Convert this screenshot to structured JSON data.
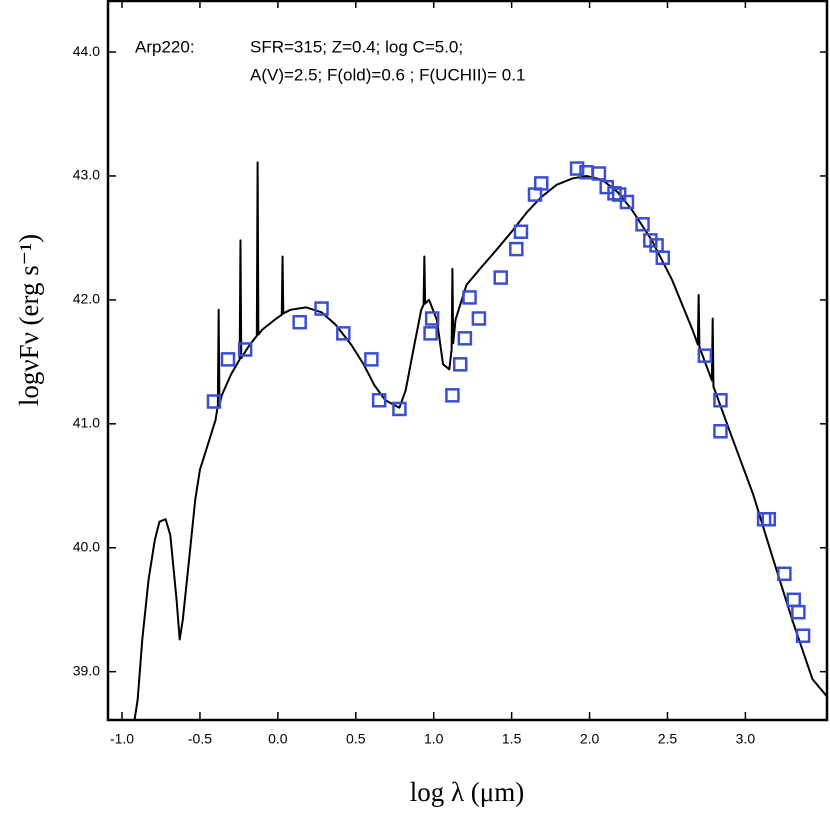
{
  "chart_data": {
    "type": "scatter",
    "annotation": [
      "Arp220:",
      "SFR=315; Z=0.4; log C=5.0;",
      "A(V)=2.5; F(old)=0.6 ; F(UCHII)= 0.1"
    ],
    "xlabel": "log λ  (μm)",
    "ylabel": "logνFν  (erg s⁻¹)",
    "xlim": [
      -1.09,
      3.53
    ],
    "ylim": [
      38.61,
      44.42
    ],
    "xticks": [
      {
        "value": -1.0,
        "label": "-1.0"
      },
      {
        "value": -0.5,
        "label": "-0.5"
      },
      {
        "value": 0.0,
        "label": "0.0"
      },
      {
        "value": 0.5,
        "label": "0.5"
      },
      {
        "value": 1.0,
        "label": "1.0"
      },
      {
        "value": 1.5,
        "label": "1.5"
      },
      {
        "value": 2.0,
        "label": "2.0"
      },
      {
        "value": 2.5,
        "label": "2.5"
      },
      {
        "value": 3.0,
        "label": "3.0"
      }
    ],
    "yticks": [
      {
        "value": 39.0,
        "label": "39.0"
      },
      {
        "value": 40.0,
        "label": "40.0"
      },
      {
        "value": 41.0,
        "label": "41.0"
      },
      {
        "value": 42.0,
        "label": "42.0"
      },
      {
        "value": 43.0,
        "label": "43.0"
      },
      {
        "value": 44.0,
        "label": "44.0"
      }
    ],
    "series": [
      {
        "type": "line",
        "color": "#000000",
        "x": [
          -0.92,
          -0.9,
          -0.87,
          -0.83,
          -0.79,
          -0.76,
          -0.72,
          -0.69,
          -0.65,
          -0.63,
          -0.61,
          -0.57,
          -0.53,
          -0.5,
          -0.45,
          -0.4,
          -0.385,
          -0.38,
          -0.375,
          -0.36,
          -0.3,
          -0.245,
          -0.24,
          -0.235,
          -0.18,
          -0.135,
          -0.13,
          -0.125,
          -0.1,
          -0.01,
          0.025,
          0.03,
          0.035,
          0.08,
          0.18,
          0.28,
          0.37,
          0.47,
          0.55,
          0.62,
          0.69,
          0.78,
          0.82,
          0.87,
          0.92,
          0.935,
          0.94,
          0.945,
          0.97,
          1.02,
          1.06,
          1.1,
          1.115,
          1.12,
          1.125,
          1.14,
          1.21,
          1.29,
          1.4,
          1.5,
          1.6,
          1.69,
          1.79,
          1.89,
          1.98,
          2.08,
          2.18,
          2.27,
          2.4,
          2.53,
          2.66,
          2.695,
          2.7,
          2.705,
          2.785,
          2.79,
          2.795,
          2.92,
          3.05,
          3.17,
          3.3,
          3.43,
          3.53
        ],
        "y": [
          38.61,
          38.77,
          39.26,
          39.74,
          40.06,
          40.21,
          40.23,
          40.1,
          39.58,
          39.26,
          39.42,
          39.9,
          40.39,
          40.63,
          40.83,
          41.03,
          41.15,
          41.92,
          41.15,
          41.23,
          41.4,
          41.52,
          42.48,
          41.53,
          41.64,
          41.71,
          43.11,
          41.72,
          41.76,
          41.85,
          41.88,
          42.35,
          41.89,
          41.92,
          41.94,
          41.9,
          41.8,
          41.64,
          41.48,
          41.31,
          41.19,
          41.13,
          41.27,
          41.6,
          41.92,
          41.96,
          42.35,
          41.97,
          42.0,
          41.84,
          41.48,
          41.44,
          41.6,
          42.25,
          41.65,
          41.84,
          42.12,
          42.24,
          42.4,
          42.55,
          42.71,
          42.83,
          42.93,
          42.98,
          43.0,
          42.97,
          42.87,
          42.73,
          42.48,
          42.16,
          41.76,
          41.64,
          42.04,
          41.62,
          41.35,
          41.85,
          41.3,
          40.87,
          40.43,
          39.94,
          39.42,
          38.94,
          38.79
        ]
      },
      {
        "type": "scatter",
        "color": "#3a4fd0",
        "marker": "square",
        "x": [
          -0.41,
          -0.32,
          -0.21,
          0.14,
          0.28,
          0.42,
          0.6,
          0.65,
          0.78,
          0.98,
          0.99,
          1.12,
          1.17,
          1.2,
          1.23,
          1.29,
          1.43,
          1.53,
          1.56,
          1.65,
          1.69,
          1.92,
          1.98,
          2.06,
          2.11,
          2.16,
          2.19,
          2.24,
          2.34,
          2.39,
          2.43,
          2.47,
          2.74,
          2.84,
          2.84,
          3.12,
          3.15,
          3.25,
          3.31,
          3.34,
          3.37
        ],
        "y": [
          41.18,
          41.52,
          41.6,
          41.82,
          41.93,
          41.73,
          41.52,
          41.19,
          41.12,
          41.73,
          41.85,
          41.23,
          41.48,
          41.69,
          42.02,
          41.85,
          42.18,
          42.41,
          42.55,
          42.85,
          42.94,
          43.06,
          43.03,
          43.02,
          42.91,
          42.86,
          42.85,
          42.79,
          42.61,
          42.48,
          42.44,
          42.34,
          41.55,
          41.19,
          40.94,
          40.23,
          40.23,
          39.79,
          39.58,
          39.48,
          39.29
        ]
      }
    ]
  }
}
